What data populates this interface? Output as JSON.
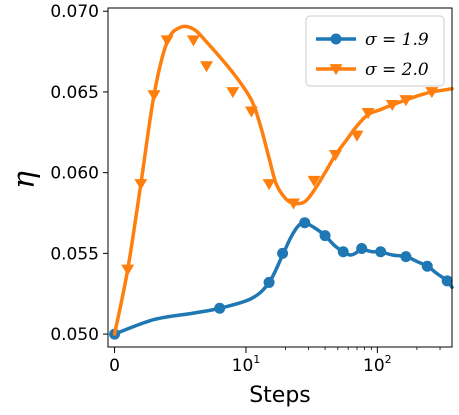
{
  "chart_data": {
    "type": "line",
    "xlabel": "Steps",
    "ylabel": "η",
    "xscale": "symlog",
    "ylim": [
      0.0492,
      0.0702
    ],
    "xlim": [
      -0.5,
      370
    ],
    "x_ticks": [
      {
        "value": 0,
        "base": "0",
        "exp": ""
      },
      {
        "value": 10,
        "base": "10",
        "exp": "1"
      },
      {
        "value": 100,
        "base": "10",
        "exp": "2"
      }
    ],
    "y_ticks": [
      {
        "value": 0.05,
        "label": "0.050"
      },
      {
        "value": 0.055,
        "label": "0.055"
      },
      {
        "value": 0.06,
        "label": "0.060"
      },
      {
        "value": 0.065,
        "label": "0.065"
      },
      {
        "value": 0.07,
        "label": "0.070"
      }
    ],
    "legend": {
      "position": "top-right"
    },
    "series": [
      {
        "name": "σ = 1.9",
        "color": "#1f77b4",
        "marker": "circle",
        "curve": [
          [
            0,
            0.05
          ],
          [
            3,
            0.0509
          ],
          [
            6,
            0.0513
          ],
          [
            8,
            0.0516
          ],
          [
            11,
            0.0522
          ],
          [
            15,
            0.0532
          ],
          [
            19,
            0.0549
          ],
          [
            22,
            0.056
          ],
          [
            25,
            0.0567
          ],
          [
            28,
            0.0569
          ],
          [
            33,
            0.0566
          ],
          [
            40,
            0.0561
          ],
          [
            47,
            0.0555
          ],
          [
            55,
            0.0551
          ],
          [
            62,
            0.0549
          ],
          [
            68,
            0.055
          ],
          [
            76,
            0.0553
          ],
          [
            82,
            0.0552
          ],
          [
            92,
            0.0551
          ],
          [
            106,
            0.0551
          ],
          [
            130,
            0.0549
          ],
          [
            165,
            0.0548
          ],
          [
            200,
            0.0545
          ],
          [
            240,
            0.0542
          ],
          [
            290,
            0.0537
          ],
          [
            340,
            0.0533
          ],
          [
            370,
            0.0529
          ]
        ],
        "points": [
          [
            0,
            0.05
          ],
          [
            8,
            0.0516
          ],
          [
            15,
            0.0532
          ],
          [
            19,
            0.055
          ],
          [
            28,
            0.0569
          ],
          [
            40,
            0.0561
          ],
          [
            55,
            0.0551
          ],
          [
            76,
            0.0553
          ],
          [
            106,
            0.0551
          ],
          [
            165,
            0.0548
          ],
          [
            240,
            0.0542
          ],
          [
            340,
            0.0533
          ]
        ]
      },
      {
        "name": "σ = 2.0",
        "color": "#ff7f0e",
        "marker": "triangle-down",
        "curve": [
          [
            0,
            0.05
          ],
          [
            1,
            0.054
          ],
          [
            2,
            0.0593
          ],
          [
            3,
            0.0648
          ],
          [
            4,
            0.0681
          ],
          [
            5,
            0.069
          ],
          [
            6,
            0.0689
          ],
          [
            7,
            0.0681
          ],
          [
            9,
            0.0662
          ],
          [
            11,
            0.0645
          ],
          [
            13,
            0.0628
          ],
          [
            15,
            0.0609
          ],
          [
            17,
            0.0593
          ],
          [
            20,
            0.0584
          ],
          [
            23,
            0.0581
          ],
          [
            28,
            0.0582
          ],
          [
            33,
            0.0589
          ],
          [
            40,
            0.06
          ],
          [
            48,
            0.0611
          ],
          [
            58,
            0.062
          ],
          [
            70,
            0.0629
          ],
          [
            85,
            0.0636
          ],
          [
            105,
            0.0639
          ],
          [
            130,
            0.0642
          ],
          [
            165,
            0.0645
          ],
          [
            210,
            0.0648
          ],
          [
            260,
            0.065
          ],
          [
            310,
            0.0651
          ],
          [
            370,
            0.0652
          ]
        ],
        "points": [
          [
            1,
            0.054
          ],
          [
            2,
            0.0593
          ],
          [
            3,
            0.0648
          ],
          [
            4,
            0.0682
          ],
          [
            6,
            0.0682
          ],
          [
            7,
            0.0666
          ],
          [
            9,
            0.065
          ],
          [
            11,
            0.0638
          ],
          [
            15,
            0.0593
          ],
          [
            23,
            0.0581
          ],
          [
            33,
            0.0595
          ],
          [
            48,
            0.0611
          ],
          [
            70,
            0.0623
          ],
          [
            85,
            0.0637
          ],
          [
            130,
            0.0642
          ],
          [
            165,
            0.0645
          ],
          [
            260,
            0.065
          ]
        ]
      }
    ]
  }
}
